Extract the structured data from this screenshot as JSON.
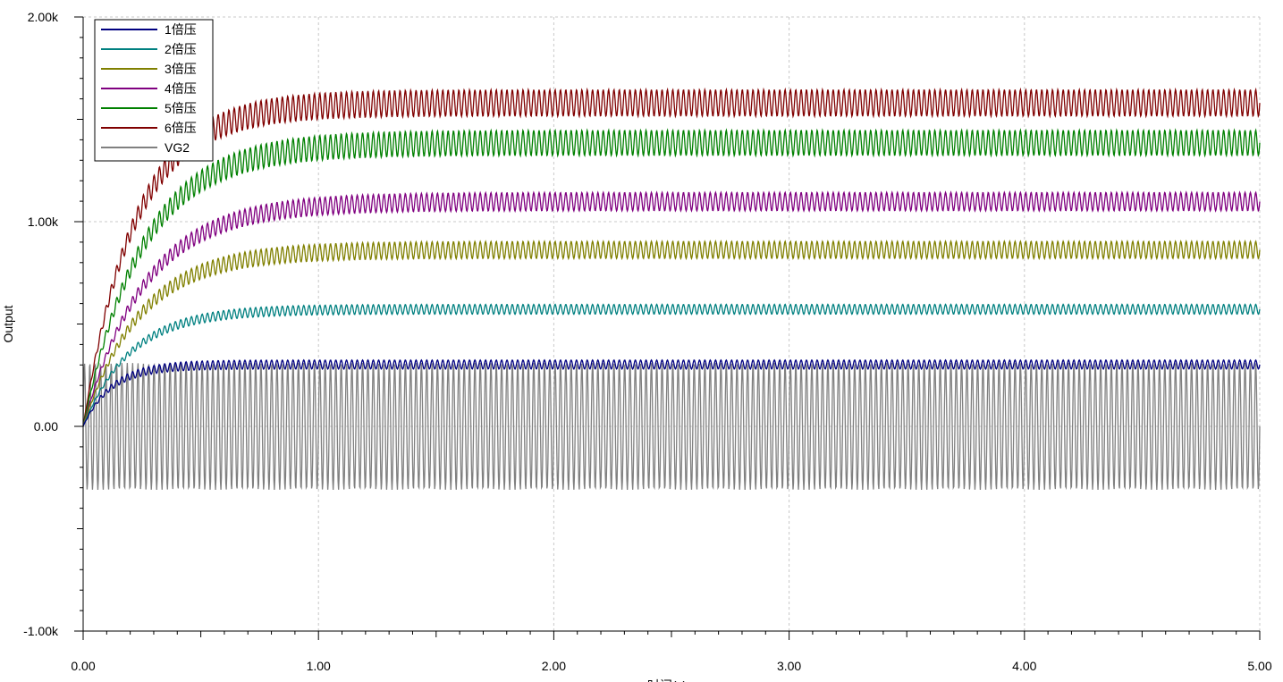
{
  "chart_data": {
    "type": "line",
    "title": "",
    "ylabel": "Output",
    "xlabel": "时间(s)",
    "xlim": [
      0,
      5
    ],
    "ylim": [
      -1000,
      2000
    ],
    "x_ticks": [
      {
        "value": 0,
        "label": "0.00"
      },
      {
        "value": 1,
        "label": "1.00"
      },
      {
        "value": 2,
        "label": "2.00"
      },
      {
        "value": 3,
        "label": "3.00"
      },
      {
        "value": 4,
        "label": "4.00"
      },
      {
        "value": 5,
        "label": "5.00"
      }
    ],
    "y_ticks": [
      {
        "value": 2000,
        "label": "2.00k"
      },
      {
        "value": 1000,
        "label": "1.00k"
      },
      {
        "value": 0,
        "label": "0.00"
      },
      {
        "value": -1000,
        "label": "-1.00k"
      }
    ],
    "grid": true,
    "legend_position": "top-left",
    "series": [
      {
        "name": "1倍压",
        "color": "#000080",
        "final_mean": 302,
        "ripple": 22,
        "tau": 0.12
      },
      {
        "name": "2倍压",
        "color": "#008080",
        "final_mean": 572,
        "ripple": 24,
        "tau": 0.2
      },
      {
        "name": "3倍压",
        "color": "#808000",
        "final_mean": 862,
        "ripple": 42,
        "tau": 0.24
      },
      {
        "name": "4倍压",
        "color": "#800080",
        "final_mean": 1098,
        "ripple": 45,
        "tau": 0.26
      },
      {
        "name": "5倍压",
        "color": "#008000",
        "final_mean": 1385,
        "ripple": 62,
        "tau": 0.25
      },
      {
        "name": "6倍压",
        "color": "#800000",
        "final_mean": 1580,
        "ripple": 65,
        "tau": 0.22
      },
      {
        "name": "VG2",
        "color": "#808080",
        "amplitude": 310,
        "cycles": 220
      }
    ]
  }
}
